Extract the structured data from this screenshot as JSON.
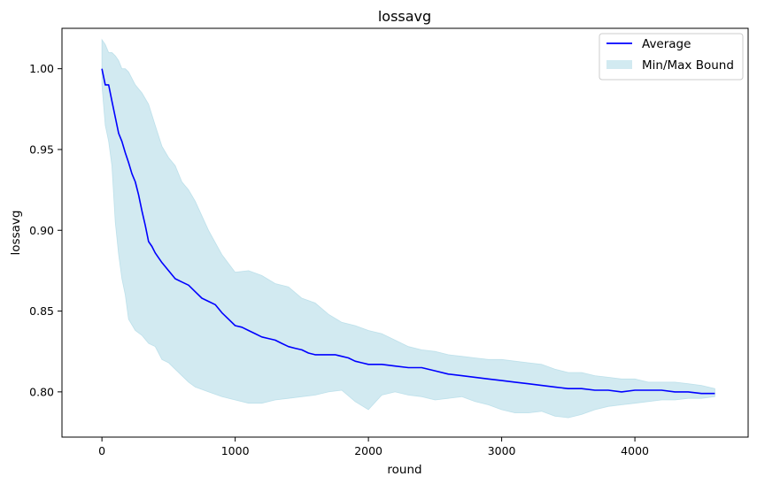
{
  "chart_data": {
    "type": "line",
    "title": "lossavg",
    "xlabel": "round",
    "ylabel": "lossavg",
    "xlim": [
      -300,
      4850
    ],
    "ylim": [
      0.772,
      1.025
    ],
    "xticks": [
      0,
      1000,
      2000,
      3000,
      4000
    ],
    "xtick_labels": [
      "0",
      "1000",
      "2000",
      "3000",
      "4000"
    ],
    "yticks": [
      0.8,
      0.85,
      0.9,
      0.95,
      1.0
    ],
    "ytick_labels": [
      "0.80",
      "0.85",
      "0.90",
      "0.95",
      "1.00"
    ],
    "grid": false,
    "legend_position": "top-right",
    "colors": {
      "average": "#0000ff",
      "band": "#add8e6"
    },
    "series": [
      {
        "name": "Average",
        "kind": "line",
        "x": [
          0,
          25,
          50,
          75,
          100,
          125,
          150,
          175,
          200,
          225,
          250,
          275,
          300,
          325,
          350,
          375,
          400,
          450,
          500,
          550,
          600,
          650,
          700,
          750,
          800,
          850,
          900,
          950,
          1000,
          1050,
          1100,
          1150,
          1200,
          1250,
          1300,
          1350,
          1400,
          1450,
          1500,
          1550,
          1600,
          1650,
          1700,
          1750,
          1800,
          1850,
          1900,
          1950,
          2000,
          2100,
          2200,
          2300,
          2400,
          2500,
          2600,
          2700,
          2800,
          2900,
          3000,
          3100,
          3200,
          3300,
          3400,
          3500,
          3600,
          3700,
          3800,
          3900,
          4000,
          4100,
          4200,
          4300,
          4400,
          4500,
          4600
        ],
        "y": [
          1.0,
          0.99,
          0.99,
          0.98,
          0.97,
          0.96,
          0.955,
          0.948,
          0.942,
          0.935,
          0.93,
          0.922,
          0.912,
          0.903,
          0.893,
          0.89,
          0.886,
          0.88,
          0.875,
          0.87,
          0.868,
          0.866,
          0.862,
          0.858,
          0.856,
          0.854,
          0.849,
          0.845,
          0.841,
          0.84,
          0.838,
          0.836,
          0.834,
          0.833,
          0.832,
          0.83,
          0.828,
          0.827,
          0.826,
          0.824,
          0.823,
          0.823,
          0.823,
          0.823,
          0.822,
          0.821,
          0.819,
          0.818,
          0.817,
          0.817,
          0.816,
          0.815,
          0.815,
          0.813,
          0.811,
          0.81,
          0.809,
          0.808,
          0.807,
          0.806,
          0.805,
          0.804,
          0.803,
          0.802,
          0.802,
          0.801,
          0.801,
          0.8,
          0.801,
          0.801,
          0.801,
          0.8,
          0.8,
          0.799,
          0.799
        ]
      },
      {
        "name": "Min/Max Bound",
        "kind": "band",
        "x": [
          0,
          25,
          50,
          75,
          100,
          125,
          150,
          175,
          200,
          250,
          300,
          350,
          400,
          450,
          500,
          550,
          600,
          650,
          700,
          800,
          900,
          1000,
          1100,
          1200,
          1300,
          1400,
          1500,
          1600,
          1700,
          1800,
          1900,
          2000,
          2100,
          2200,
          2300,
          2400,
          2500,
          2600,
          2700,
          2800,
          2900,
          3000,
          3100,
          3200,
          3300,
          3400,
          3500,
          3600,
          3700,
          3800,
          3900,
          4000,
          4100,
          4200,
          4300,
          4400,
          4500,
          4600
        ],
        "upper": [
          1.018,
          1.015,
          1.01,
          1.01,
          1.008,
          1.005,
          1.0,
          1.0,
          0.998,
          0.99,
          0.985,
          0.978,
          0.965,
          0.952,
          0.945,
          0.94,
          0.93,
          0.925,
          0.918,
          0.9,
          0.885,
          0.874,
          0.875,
          0.872,
          0.867,
          0.865,
          0.858,
          0.855,
          0.848,
          0.843,
          0.841,
          0.838,
          0.836,
          0.832,
          0.828,
          0.826,
          0.825,
          0.823,
          0.822,
          0.821,
          0.82,
          0.82,
          0.819,
          0.818,
          0.817,
          0.814,
          0.812,
          0.812,
          0.81,
          0.809,
          0.808,
          0.808,
          0.806,
          0.806,
          0.806,
          0.805,
          0.804,
          0.802
        ],
        "lower": [
          0.99,
          0.965,
          0.955,
          0.94,
          0.905,
          0.885,
          0.87,
          0.86,
          0.845,
          0.838,
          0.835,
          0.83,
          0.828,
          0.82,
          0.818,
          0.814,
          0.81,
          0.806,
          0.803,
          0.8,
          0.797,
          0.795,
          0.793,
          0.793,
          0.795,
          0.796,
          0.797,
          0.798,
          0.8,
          0.801,
          0.794,
          0.789,
          0.798,
          0.8,
          0.798,
          0.797,
          0.795,
          0.796,
          0.797,
          0.794,
          0.792,
          0.789,
          0.787,
          0.787,
          0.788,
          0.785,
          0.784,
          0.786,
          0.789,
          0.791,
          0.792,
          0.793,
          0.794,
          0.795,
          0.795,
          0.796,
          0.796,
          0.797
        ]
      }
    ]
  }
}
